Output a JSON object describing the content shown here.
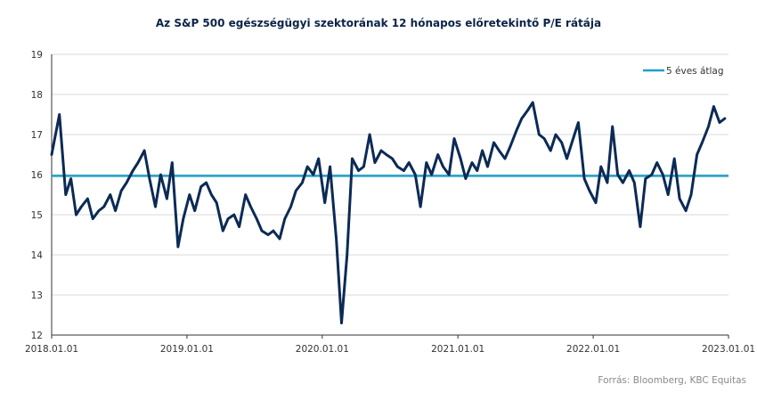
{
  "chart_data": {
    "type": "line",
    "title": "Az S&P 500 egészségügyi szektorának 12 hónapos előretekintő P/E rátája",
    "source": "Forrás: Bloomberg, KBC Equitas",
    "xlabel": "",
    "ylabel": "",
    "ylim": [
      12,
      19
    ],
    "yticks": [
      12,
      13,
      14,
      15,
      16,
      17,
      18,
      19
    ],
    "xlim": [
      "2018-01-01",
      "2023-01-01"
    ],
    "xticks": [
      "2018.01.01",
      "2019.01.01",
      "2020.01.01",
      "2021.01.01",
      "2022.01.01",
      "2023.01.01"
    ],
    "grid": "horizontal",
    "legend": "top-right",
    "colors": {
      "series": "#0b2a55",
      "average": "#1ea0cc"
    },
    "average": {
      "name": "5 éves átlag",
      "value": 15.97
    },
    "series": [
      {
        "name": "",
        "x": [
          "2018-01-01",
          "2018-01-22",
          "2018-02-08",
          "2018-02-22",
          "2018-03-08",
          "2018-03-22",
          "2018-04-08",
          "2018-04-22",
          "2018-05-08",
          "2018-05-22",
          "2018-06-08",
          "2018-06-22",
          "2018-07-08",
          "2018-07-22",
          "2018-08-08",
          "2018-08-22",
          "2018-09-08",
          "2018-09-22",
          "2018-10-08",
          "2018-10-22",
          "2018-11-08",
          "2018-11-22",
          "2018-12-08",
          "2018-12-22",
          "2019-01-08",
          "2019-01-22",
          "2019-02-08",
          "2019-02-22",
          "2019-03-08",
          "2019-03-22",
          "2019-04-08",
          "2019-04-22",
          "2019-05-08",
          "2019-05-22",
          "2019-06-08",
          "2019-06-22",
          "2019-07-08",
          "2019-07-22",
          "2019-08-08",
          "2019-08-22",
          "2019-09-08",
          "2019-09-22",
          "2019-10-08",
          "2019-10-22",
          "2019-11-08",
          "2019-11-22",
          "2019-12-08",
          "2019-12-22",
          "2020-01-08",
          "2020-01-22",
          "2020-02-08",
          "2020-02-22",
          "2020-03-08",
          "2020-03-22",
          "2020-04-08",
          "2020-04-22",
          "2020-05-08",
          "2020-05-22",
          "2020-06-08",
          "2020-06-22",
          "2020-07-08",
          "2020-07-22",
          "2020-08-08",
          "2020-08-22",
          "2020-09-08",
          "2020-09-22",
          "2020-10-08",
          "2020-10-22",
          "2020-11-08",
          "2020-11-22",
          "2020-12-08",
          "2020-12-22",
          "2021-01-08",
          "2021-01-22",
          "2021-02-08",
          "2021-02-22",
          "2021-03-08",
          "2021-03-22",
          "2021-04-08",
          "2021-04-22",
          "2021-05-08",
          "2021-05-22",
          "2021-06-08",
          "2021-06-22",
          "2021-07-08",
          "2021-07-22",
          "2021-08-08",
          "2021-08-22",
          "2021-09-08",
          "2021-09-22",
          "2021-10-08",
          "2021-10-22",
          "2021-11-08",
          "2021-11-22",
          "2021-12-08",
          "2021-12-22",
          "2022-01-08",
          "2022-01-22",
          "2022-02-08",
          "2022-02-22",
          "2022-03-08",
          "2022-03-22",
          "2022-04-08",
          "2022-04-22",
          "2022-05-08",
          "2022-05-22",
          "2022-06-08",
          "2022-06-22",
          "2022-07-08",
          "2022-07-22",
          "2022-08-08",
          "2022-08-22",
          "2022-09-08",
          "2022-09-22",
          "2022-10-08",
          "2022-10-22",
          "2022-11-08",
          "2022-11-22",
          "2022-12-08",
          "2022-12-22"
        ],
        "values": [
          16.5,
          17.5,
          15.5,
          15.9,
          15.0,
          15.2,
          15.4,
          14.9,
          15.1,
          15.2,
          15.5,
          15.1,
          15.6,
          15.8,
          16.1,
          16.3,
          16.6,
          15.9,
          15.2,
          16.0,
          15.4,
          16.3,
          14.2,
          14.9,
          15.5,
          15.1,
          15.7,
          15.8,
          15.5,
          15.3,
          14.6,
          14.9,
          15.0,
          14.7,
          15.5,
          15.2,
          14.9,
          14.6,
          14.5,
          14.6,
          14.4,
          14.9,
          15.2,
          15.6,
          15.8,
          16.2,
          16.0,
          16.4,
          15.3,
          16.2,
          14.4,
          12.3,
          14.0,
          16.4,
          16.1,
          16.2,
          17.0,
          16.3,
          16.6,
          16.5,
          16.4,
          16.2,
          16.1,
          16.3,
          16.0,
          15.2,
          16.3,
          16.0,
          16.5,
          16.2,
          16.0,
          16.9,
          16.4,
          15.9,
          16.3,
          16.1,
          16.6,
          16.2,
          16.8,
          16.6,
          16.4,
          16.7,
          17.1,
          17.4,
          17.6,
          17.8,
          17.0,
          16.9,
          16.6,
          17.0,
          16.8,
          16.4,
          16.9,
          17.3,
          15.9,
          15.6,
          15.3,
          16.2,
          15.8,
          17.2,
          16.0,
          15.8,
          16.1,
          15.8,
          14.7,
          15.9,
          16.0,
          16.3,
          16.0,
          15.5,
          16.4,
          15.4,
          15.1,
          15.5,
          16.5,
          16.8,
          17.2,
          17.7,
          17.3,
          17.4
        ]
      }
    ]
  }
}
